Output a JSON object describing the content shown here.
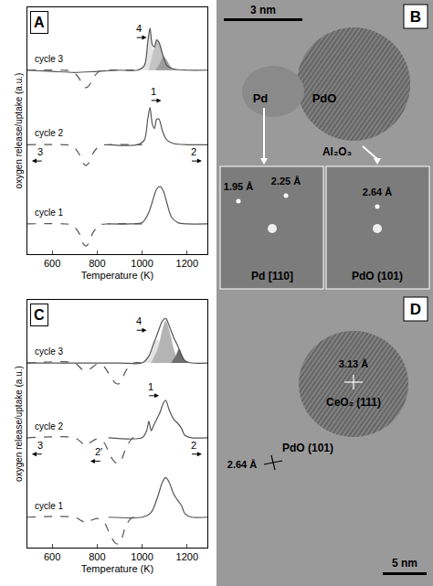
{
  "chart_data": [
    {
      "type": "line",
      "panel_label": "A",
      "x_label": "Temperature (K)",
      "y_label": "oxygen release/uptake (a.u.)",
      "xlim": [
        490,
        1290
      ],
      "xticks": [
        600,
        800,
        1000,
        1200
      ],
      "ylim": [
        -0.3,
        10.3
      ],
      "yticks": [],
      "tick_labels": "x",
      "grid": false,
      "series": [
        {
          "type": "area",
          "color": "#e4e4e4",
          "x": [
            1000,
            1015,
            1025,
            1035,
            1045,
            1060
          ],
          "values": [
            7.6,
            7.9,
            8.8,
            9.4,
            8.6,
            7.6
          ]
        },
        {
          "type": "area",
          "color": "#c4c4c4",
          "x": [
            1030,
            1045,
            1055,
            1065,
            1080,
            1095,
            1110,
            1130
          ],
          "values": [
            7.6,
            8.2,
            8.6,
            8.9,
            8.7,
            8.2,
            7.8,
            7.6
          ]
        },
        {
          "type": "area",
          "color": "#9c9c9c",
          "x": [
            1060,
            1080,
            1095,
            1110,
            1130,
            1150
          ],
          "values": [
            7.6,
            7.9,
            8.2,
            8.0,
            7.7,
            7.6
          ]
        },
        {
          "type": "line",
          "color": "#555555",
          "line_style": "solid",
          "x": [
            850,
            950,
            1000,
            1030,
            1050,
            1065,
            1080,
            1095,
            1110,
            1130,
            1160,
            1200,
            1290
          ],
          "values": [
            1.0,
            1.0,
            1.05,
            1.5,
            2.1,
            2.5,
            2.6,
            2.4,
            1.9,
            1.3,
            1.05,
            1.0,
            1.0
          ]
        },
        {
          "type": "line",
          "color": "#555555",
          "line_style": "dashed",
          "x": [
            490,
            650,
            690,
            720,
            735,
            750,
            765,
            780,
            810,
            850,
            1000
          ],
          "values": [
            1.0,
            1.0,
            0.95,
            0.6,
            0.2,
            0.05,
            0.2,
            0.6,
            0.95,
            1.0,
            1.0
          ]
        },
        {
          "type": "line",
          "color": "#555555",
          "line_style": "solid",
          "x": [
            850,
            980,
            1010,
            1025,
            1035,
            1045,
            1055,
            1065,
            1075,
            1090,
            1110,
            1140,
            1200,
            1290
          ],
          "values": [
            4.4,
            4.4,
            4.6,
            5.5,
            6.0,
            5.3,
            5.1,
            5.5,
            5.5,
            5.0,
            4.6,
            4.45,
            4.4,
            4.4
          ]
        },
        {
          "type": "line",
          "color": "#555555",
          "line_style": "dashed",
          "x": [
            490,
            650,
            690,
            720,
            735,
            750,
            765,
            780,
            810,
            850,
            1000
          ],
          "values": [
            4.4,
            4.4,
            4.35,
            4.0,
            3.65,
            3.5,
            3.65,
            4.0,
            4.35,
            4.4,
            4.4
          ]
        },
        {
          "type": "line",
          "color": "#555555",
          "line_style": "solid",
          "x": [
            490,
            600,
            700,
            800,
            900,
            980,
            1010,
            1025,
            1035,
            1045,
            1055,
            1065,
            1075,
            1090,
            1110,
            1140,
            1200,
            1290
          ],
          "values": [
            7.6,
            7.55,
            7.5,
            7.55,
            7.6,
            7.6,
            7.8,
            8.8,
            9.4,
            8.7,
            8.6,
            8.9,
            8.8,
            8.3,
            7.8,
            7.65,
            7.6,
            7.6
          ]
        },
        {
          "type": "line",
          "color": "#555555",
          "line_style": "dashed",
          "x": [
            490,
            650,
            690,
            720,
            735,
            750,
            765,
            780,
            810,
            850,
            1000
          ],
          "values": [
            7.6,
            7.6,
            7.55,
            7.25,
            6.95,
            6.85,
            6.95,
            7.25,
            7.55,
            7.6,
            7.6
          ]
        }
      ],
      "annotations": [
        {
          "text": "cycle 1",
          "x": 515,
          "y": 1.2
        },
        {
          "text": "cycle 2",
          "x": 515,
          "y": 4.6
        },
        {
          "text": "cycle 3",
          "x": 515,
          "y": 7.8
        },
        {
          "text": "1",
          "x": 1050,
          "y": 6.3,
          "arrow": "right"
        },
        {
          "text": "2",
          "x": 1230,
          "y": 3.7,
          "arrow": "right"
        },
        {
          "text": "3",
          "x": 545,
          "y": 3.7,
          "arrow": "left"
        },
        {
          "text": "4",
          "x": 985,
          "y": 9.0,
          "arrow": "right"
        }
      ]
    },
    {
      "type": "line",
      "panel_label": "C",
      "x_label": "Temperature (K)",
      "y_label": "oxygen release/uptake (a.u.)",
      "xlim": [
        490,
        1290
      ],
      "xticks": [
        600,
        800,
        1000,
        1200
      ],
      "ylim": [
        -0.3,
        10.3
      ],
      "yticks": [],
      "tick_labels": "x",
      "grid": false,
      "series": [
        {
          "type": "area",
          "color": "#e4e4e4",
          "x": [
            1000,
            1030,
            1050,
            1070,
            1090,
            1110
          ],
          "values": [
            7.6,
            7.9,
            8.4,
            8.6,
            8.0,
            7.6
          ]
        },
        {
          "type": "area",
          "color": "#b4b4b4",
          "x": [
            1040,
            1070,
            1090,
            1105,
            1120,
            1140,
            1160
          ],
          "values": [
            7.6,
            8.2,
            9.0,
            9.4,
            9.0,
            8.2,
            7.6
          ]
        },
        {
          "type": "area",
          "color": "#6e6e6e",
          "x": [
            1130,
            1150,
            1165,
            1175,
            1190,
            1210
          ],
          "values": [
            7.6,
            7.9,
            8.2,
            8.0,
            7.7,
            7.6
          ]
        },
        {
          "type": "line",
          "color": "#555555",
          "line_style": "solid",
          "x": [
            850,
            1000,
            1040,
            1070,
            1090,
            1105,
            1120,
            1140,
            1160,
            1175,
            1190,
            1220,
            1290
          ],
          "values": [
            1.0,
            1.0,
            1.2,
            1.9,
            2.5,
            2.7,
            2.5,
            2.0,
            1.7,
            1.5,
            1.15,
            1.0,
            1.0
          ]
        },
        {
          "type": "line",
          "color": "#555555",
          "line_style": "dashed",
          "x": [
            490,
            700,
            730,
            750,
            770,
            800,
            830,
            860,
            880,
            895,
            910,
            930,
            960,
            1000
          ],
          "values": [
            1.0,
            1.0,
            0.85,
            0.75,
            0.85,
            0.95,
            0.8,
            0.2,
            -0.1,
            -0.15,
            0.1,
            0.7,
            1.0,
            1.0
          ]
        },
        {
          "type": "line",
          "color": "#555555",
          "line_style": "solid",
          "x": [
            850,
            1000,
            1020,
            1030,
            1040,
            1050,
            1065,
            1080,
            1095,
            1105,
            1120,
            1140,
            1160,
            1175,
            1190,
            1220,
            1290
          ],
          "values": [
            4.4,
            4.4,
            4.7,
            5.1,
            4.7,
            4.9,
            5.2,
            5.5,
            5.9,
            6.0,
            5.6,
            5.2,
            5.0,
            4.8,
            4.5,
            4.4,
            4.4
          ]
        },
        {
          "type": "line",
          "color": "#555555",
          "line_style": "dashed",
          "x": [
            490,
            700,
            730,
            750,
            770,
            800,
            830,
            860,
            880,
            895,
            910,
            930,
            960,
            1000
          ],
          "values": [
            4.4,
            4.4,
            4.2,
            4.05,
            4.2,
            4.35,
            4.2,
            3.6,
            3.35,
            3.3,
            3.5,
            4.0,
            4.4,
            4.4
          ]
        },
        {
          "type": "line",
          "color": "#555555",
          "line_style": "solid",
          "x": [
            490,
            900,
            1000,
            1030,
            1050,
            1070,
            1090,
            1105,
            1120,
            1140,
            1160,
            1175,
            1190,
            1220,
            1290
          ],
          "values": [
            7.6,
            7.6,
            7.6,
            7.9,
            8.4,
            8.9,
            9.4,
            9.5,
            9.2,
            8.7,
            8.3,
            7.9,
            7.7,
            7.6,
            7.6
          ]
        },
        {
          "type": "line",
          "color": "#555555",
          "line_style": "dashed",
          "x": [
            490,
            700,
            730,
            750,
            770,
            800,
            830,
            860,
            880,
            895,
            910,
            930,
            960,
            1000
          ],
          "values": [
            7.6,
            7.6,
            7.35,
            7.25,
            7.35,
            7.55,
            7.45,
            7.0,
            6.75,
            6.7,
            6.9,
            7.3,
            7.6,
            7.6
          ]
        }
      ],
      "annotations": [
        {
          "text": "cycle 1",
          "x": 515,
          "y": 1.2
        },
        {
          "text": "cycle 2",
          "x": 515,
          "y": 4.6
        },
        {
          "text": "cycle 3",
          "x": 515,
          "y": 7.8
        },
        {
          "text": "1",
          "x": 1040,
          "y": 6.2,
          "arrow": "right"
        },
        {
          "text": "2",
          "x": 1230,
          "y": 3.7,
          "arrow": "right"
        },
        {
          "text": "2'",
          "x": 805,
          "y": 3.4,
          "arrow": "left"
        },
        {
          "text": "3",
          "x": 545,
          "y": 3.7,
          "arrow": "left"
        },
        {
          "text": "4",
          "x": 985,
          "y": 9.0,
          "arrow": "right"
        }
      ]
    }
  ],
  "images": [
    {
      "panel_label": "B",
      "scale_bar": "3 nm",
      "labels": [
        "Pd",
        "PdO",
        "Al₂O₃"
      ],
      "insets": [
        {
          "title": "Pd [110]",
          "spacings": [
            "1.95 Å",
            "2.25 Å"
          ]
        },
        {
          "title": "PdO (101)",
          "spacings": [
            "2.64 Å"
          ]
        }
      ]
    },
    {
      "panel_label": "D",
      "scale_bar": "5 nm",
      "labels": [
        {
          "spacing": "3.13 Å",
          "plane": "CeO₂ (111)"
        },
        {
          "spacing": "2.64 Å",
          "plane": "PdO (101)"
        }
      ]
    }
  ]
}
